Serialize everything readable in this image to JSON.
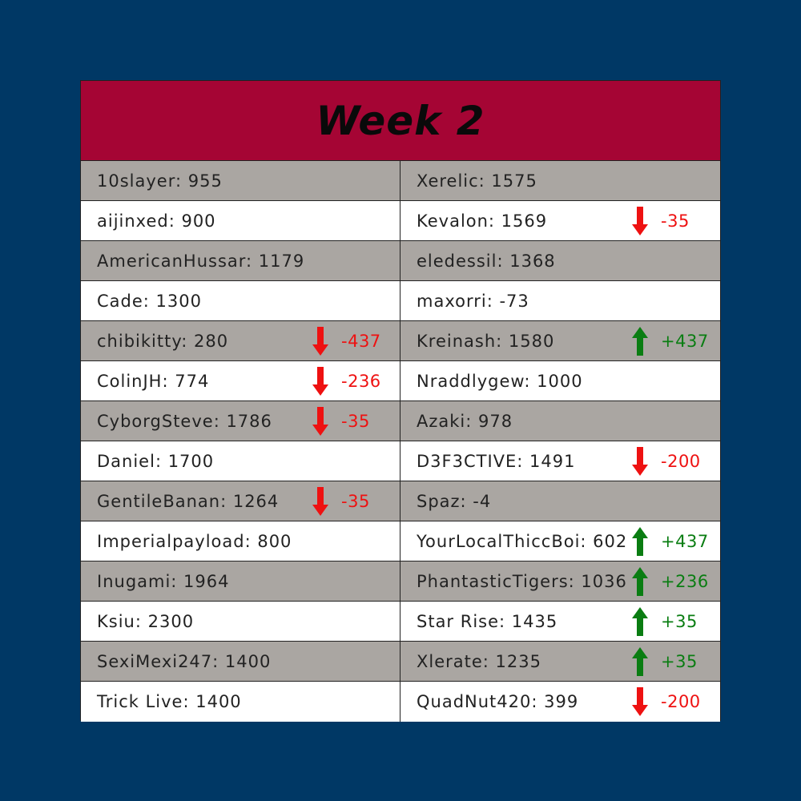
{
  "title": "Week 2",
  "colors": {
    "background": "#003865",
    "header": "#a50534",
    "shade": "#aaa6a2",
    "up": "#0a7d12",
    "down": "#ee1111"
  },
  "left": [
    {
      "entry": "10slayer: 955",
      "delta": "",
      "dir": ""
    },
    {
      "entry": "aijinxed: 900",
      "delta": "",
      "dir": ""
    },
    {
      "entry": "AmericanHussar: 1179",
      "delta": "",
      "dir": ""
    },
    {
      "entry": "Cade: 1300",
      "delta": "",
      "dir": ""
    },
    {
      "entry": "chibikitty: 280",
      "delta": "-437",
      "dir": "down"
    },
    {
      "entry": "ColinJH: 774",
      "delta": "-236",
      "dir": "down"
    },
    {
      "entry": "CyborgSteve: 1786",
      "delta": "-35",
      "dir": "down"
    },
    {
      "entry": "Daniel: 1700",
      "delta": "",
      "dir": ""
    },
    {
      "entry": "GentileBanan: 1264",
      "delta": "-35",
      "dir": "down"
    },
    {
      "entry": "Imperialpayload: 800",
      "delta": "",
      "dir": ""
    },
    {
      "entry": "Inugami: 1964",
      "delta": "",
      "dir": ""
    },
    {
      "entry": "Ksiu: 2300",
      "delta": "",
      "dir": ""
    },
    {
      "entry": "SexiMexi247: 1400",
      "delta": "",
      "dir": ""
    },
    {
      "entry": "Trick Live: 1400",
      "delta": "",
      "dir": ""
    }
  ],
  "right": [
    {
      "entry": "Xerelic: 1575",
      "delta": "",
      "dir": ""
    },
    {
      "entry": "Kevalon: 1569",
      "delta": "-35",
      "dir": "down"
    },
    {
      "entry": "eledessil: 1368",
      "delta": "",
      "dir": ""
    },
    {
      "entry": "maxorri: -73",
      "delta": "",
      "dir": ""
    },
    {
      "entry": "Kreinash: 1580",
      "delta": "+437",
      "dir": "up"
    },
    {
      "entry": "Nraddlygew: 1000",
      "delta": "",
      "dir": ""
    },
    {
      "entry": "Azaki: 978",
      "delta": "",
      "dir": ""
    },
    {
      "entry": "D3F3CTIVE: 1491",
      "delta": "-200",
      "dir": "down"
    },
    {
      "entry": "Spaz: -4",
      "delta": "",
      "dir": ""
    },
    {
      "entry": "YourLocalThiccBoi: 602",
      "delta": "+437",
      "dir": "up"
    },
    {
      "entry": "PhantasticTigers: 1036",
      "delta": "+236",
      "dir": "up"
    },
    {
      "entry": "Star Rise: 1435",
      "delta": "+35",
      "dir": "up"
    },
    {
      "entry": "Xlerate: 1235",
      "delta": "+35",
      "dir": "up"
    },
    {
      "entry": "QuadNut420: 399",
      "delta": "-200",
      "dir": "down"
    }
  ]
}
